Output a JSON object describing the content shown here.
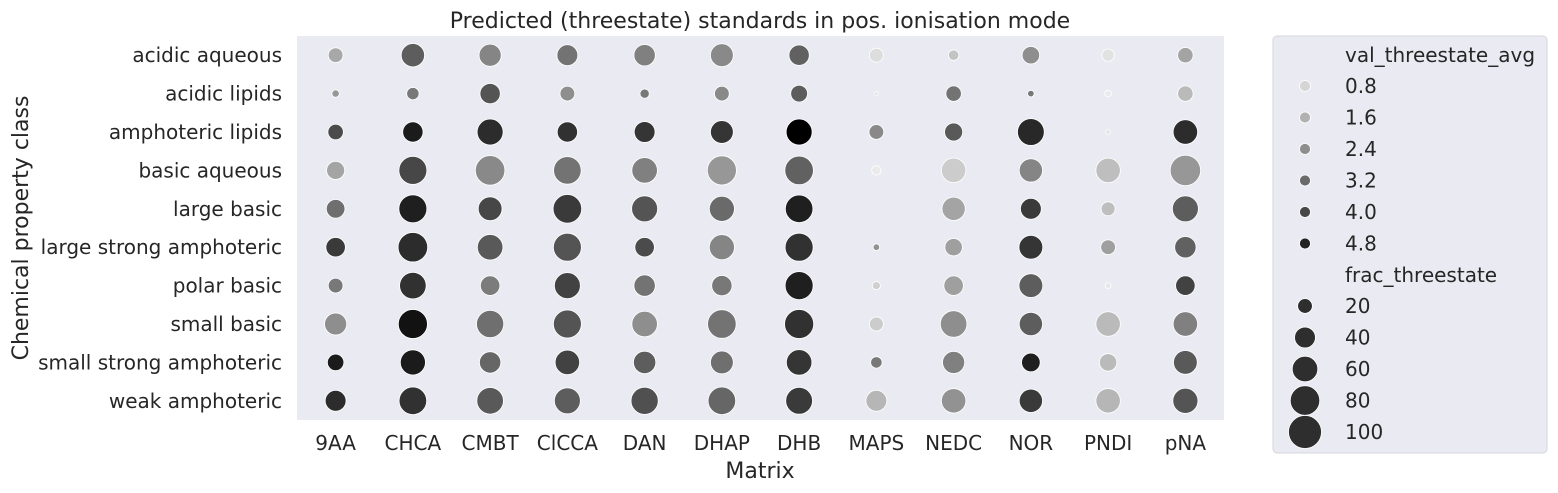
{
  "chart_data": {
    "type": "scatter",
    "title": "Predicted (threestate) standards in pos. ionisation mode",
    "xlabel": "Matrix",
    "ylabel": "Chemical property class",
    "x_categories": [
      "9AA",
      "CHCA",
      "CMBT",
      "ClCCA",
      "DAN",
      "DHAP",
      "DHB",
      "MAPS",
      "NEDC",
      "NOR",
      "PNDI",
      "pNA"
    ],
    "y_categories": [
      "acidic aqueous",
      "acidic lipids",
      "amphoteric lipids",
      "basic aqueous",
      "large basic",
      "large strong amphoteric",
      "polar basic",
      "small basic",
      "small strong amphoteric",
      "weak amphoteric"
    ],
    "color_variable": "val_threestate_avg",
    "size_variable": "frac_threestate",
    "legend": {
      "placement": "outside-right",
      "color_title": "val_threestate_avg",
      "color_entries": [
        0.8,
        1.6,
        2.4,
        3.2,
        4.0,
        4.8
      ],
      "color_labels": [
        "0.8",
        "1.6",
        "2.4",
        "3.2",
        "4.0",
        "4.8"
      ],
      "size_title": "frac_threestate",
      "size_entries": [
        20,
        40,
        60,
        80,
        100
      ],
      "size_labels": [
        "20",
        "40",
        "60",
        "80",
        "100"
      ]
    },
    "grid": false,
    "points": [
      {
        "x": "9AA",
        "y": "acidic aqueous",
        "val": 1.8,
        "frac": 20
      },
      {
        "x": "CHCA",
        "y": "acidic aqueous",
        "val": 3.5,
        "frac": 50
      },
      {
        "x": "CMBT",
        "y": "acidic aqueous",
        "val": 2.6,
        "frac": 45
      },
      {
        "x": "ClCCA",
        "y": "acidic aqueous",
        "val": 3.0,
        "frac": 40
      },
      {
        "x": "DAN",
        "y": "acidic aqueous",
        "val": 2.7,
        "frac": 42
      },
      {
        "x": "DHAP",
        "y": "acidic aqueous",
        "val": 2.5,
        "frac": 48
      },
      {
        "x": "DHB",
        "y": "acidic aqueous",
        "val": 3.4,
        "frac": 38
      },
      {
        "x": "MAPS",
        "y": "acidic aqueous",
        "val": 0.6,
        "frac": 18
      },
      {
        "x": "NEDC",
        "y": "acidic aqueous",
        "val": 1.2,
        "frac": 10
      },
      {
        "x": "NOR",
        "y": "acidic aqueous",
        "val": 2.4,
        "frac": 28
      },
      {
        "x": "PNDI",
        "y": "acidic aqueous",
        "val": 0.5,
        "frac": 14
      },
      {
        "x": "pNA",
        "y": "acidic aqueous",
        "val": 1.9,
        "frac": 22
      },
      {
        "x": "9AA",
        "y": "acidic lipids",
        "val": 2.2,
        "frac": 5
      },
      {
        "x": "CHCA",
        "y": "acidic lipids",
        "val": 2.9,
        "frac": 14
      },
      {
        "x": "CMBT",
        "y": "acidic lipids",
        "val": 3.7,
        "frac": 38
      },
      {
        "x": "ClCCA",
        "y": "acidic lipids",
        "val": 2.4,
        "frac": 20
      },
      {
        "x": "DAN",
        "y": "acidic lipids",
        "val": 2.9,
        "frac": 8
      },
      {
        "x": "DHAP",
        "y": "acidic lipids",
        "val": 2.5,
        "frac": 20
      },
      {
        "x": "DHB",
        "y": "acidic lipids",
        "val": 3.5,
        "frac": 26
      },
      {
        "x": "MAPS",
        "y": "acidic lipids",
        "val": 0.7,
        "frac": 1
      },
      {
        "x": "NEDC",
        "y": "acidic lipids",
        "val": 3.0,
        "frac": 22
      },
      {
        "x": "NOR",
        "y": "acidic lipids",
        "val": 2.9,
        "frac": 4
      },
      {
        "x": "PNDI",
        "y": "acidic lipids",
        "val": 0.3,
        "frac": 4
      },
      {
        "x": "pNA",
        "y": "acidic lipids",
        "val": 1.4,
        "frac": 22
      },
      {
        "x": "9AA",
        "y": "amphoteric lipids",
        "val": 3.9,
        "frac": 22
      },
      {
        "x": "CHCA",
        "y": "amphoteric lipids",
        "val": 5.0,
        "frac": 38
      },
      {
        "x": "CMBT",
        "y": "amphoteric lipids",
        "val": 4.6,
        "frac": 62
      },
      {
        "x": "ClCCA",
        "y": "amphoteric lipids",
        "val": 4.5,
        "frac": 38
      },
      {
        "x": "DAN",
        "y": "amphoteric lipids",
        "val": 4.4,
        "frac": 40
      },
      {
        "x": "DHAP",
        "y": "amphoteric lipids",
        "val": 4.4,
        "frac": 48
      },
      {
        "x": "DHB",
        "y": "amphoteric lipids",
        "val": 5.7,
        "frac": 62
      },
      {
        "x": "MAPS",
        "y": "amphoteric lipids",
        "val": 2.5,
        "frac": 20
      },
      {
        "x": "NEDC",
        "y": "amphoteric lipids",
        "val": 3.6,
        "frac": 30
      },
      {
        "x": "NOR",
        "y": "amphoteric lipids",
        "val": 4.7,
        "frac": 66
      },
      {
        "x": "PNDI",
        "y": "amphoteric lipids",
        "val": 0.5,
        "frac": 2
      },
      {
        "x": "pNA",
        "y": "amphoteric lipids",
        "val": 4.6,
        "frac": 55
      },
      {
        "x": "9AA",
        "y": "basic aqueous",
        "val": 1.9,
        "frac": 30
      },
      {
        "x": "CHCA",
        "y": "basic aqueous",
        "val": 4.0,
        "frac": 72
      },
      {
        "x": "CMBT",
        "y": "basic aqueous",
        "val": 2.5,
        "frac": 80
      },
      {
        "x": "ClCCA",
        "y": "basic aqueous",
        "val": 3.0,
        "frac": 70
      },
      {
        "x": "DAN",
        "y": "basic aqueous",
        "val": 2.7,
        "frac": 60
      },
      {
        "x": "DHAP",
        "y": "basic aqueous",
        "val": 2.2,
        "frac": 78
      },
      {
        "x": "DHB",
        "y": "basic aqueous",
        "val": 3.4,
        "frac": 75
      },
      {
        "x": "MAPS",
        "y": "basic aqueous",
        "val": 0.3,
        "frac": 8
      },
      {
        "x": "NEDC",
        "y": "basic aqueous",
        "val": 1.0,
        "frac": 55
      },
      {
        "x": "NOR",
        "y": "basic aqueous",
        "val": 2.6,
        "frac": 50
      },
      {
        "x": "PNDI",
        "y": "basic aqueous",
        "val": 1.3,
        "frac": 55
      },
      {
        "x": "pNA",
        "y": "basic aqueous",
        "val": 2.2,
        "frac": 85
      },
      {
        "x": "9AA",
        "y": "large basic",
        "val": 3.1,
        "frac": 32
      },
      {
        "x": "CHCA",
        "y": "large basic",
        "val": 4.9,
        "frac": 72
      },
      {
        "x": "CMBT",
        "y": "large basic",
        "val": 4.0,
        "frac": 52
      },
      {
        "x": "ClCCA",
        "y": "large basic",
        "val": 4.3,
        "frac": 75
      },
      {
        "x": "DAN",
        "y": "large basic",
        "val": 3.7,
        "frac": 62
      },
      {
        "x": "DHAP",
        "y": "large basic",
        "val": 3.2,
        "frac": 58
      },
      {
        "x": "DHB",
        "y": "large basic",
        "val": 4.9,
        "frac": 70
      },
      {
        "x": "NEDC",
        "y": "large basic",
        "val": 1.9,
        "frac": 50
      },
      {
        "x": "NOR",
        "y": "large basic",
        "val": 4.3,
        "frac": 40
      },
      {
        "x": "PNDI",
        "y": "large basic",
        "val": 1.3,
        "frac": 18
      },
      {
        "x": "pNA",
        "y": "large basic",
        "val": 3.5,
        "frac": 62
      },
      {
        "x": "9AA",
        "y": "large strong amphoteric",
        "val": 4.3,
        "frac": 35
      },
      {
        "x": "CHCA",
        "y": "large strong amphoteric",
        "val": 4.6,
        "frac": 80
      },
      {
        "x": "CMBT",
        "y": "large strong amphoteric",
        "val": 3.6,
        "frac": 60
      },
      {
        "x": "ClCCA",
        "y": "large strong amphoteric",
        "val": 3.7,
        "frac": 72
      },
      {
        "x": "DAN",
        "y": "large strong amphoteric",
        "val": 3.9,
        "frac": 35
      },
      {
        "x": "DHAP",
        "y": "large strong amphoteric",
        "val": 2.6,
        "frac": 58
      },
      {
        "x": "DHB",
        "y": "large strong amphoteric",
        "val": 4.5,
        "frac": 72
      },
      {
        "x": "MAPS",
        "y": "large strong amphoteric",
        "val": 2.3,
        "frac": 4
      },
      {
        "x": "NEDC",
        "y": "large strong amphoteric",
        "val": 2.0,
        "frac": 28
      },
      {
        "x": "NOR",
        "y": "large strong amphoteric",
        "val": 4.4,
        "frac": 52
      },
      {
        "x": "PNDI",
        "y": "large strong amphoteric",
        "val": 2.0,
        "frac": 20
      },
      {
        "x": "pNA",
        "y": "large strong amphoteric",
        "val": 3.4,
        "frac": 42
      },
      {
        "x": "9AA",
        "y": "polar basic",
        "val": 2.9,
        "frac": 20
      },
      {
        "x": "CHCA",
        "y": "polar basic",
        "val": 4.5,
        "frac": 65
      },
      {
        "x": "CMBT",
        "y": "polar basic",
        "val": 2.8,
        "frac": 35
      },
      {
        "x": "ClCCA",
        "y": "polar basic",
        "val": 4.1,
        "frac": 62
      },
      {
        "x": "DAN",
        "y": "polar basic",
        "val": 3.0,
        "frac": 42
      },
      {
        "x": "DHAP",
        "y": "polar basic",
        "val": 2.9,
        "frac": 38
      },
      {
        "x": "DHB",
        "y": "polar basic",
        "val": 4.9,
        "frac": 72
      },
      {
        "x": "MAPS",
        "y": "polar basic",
        "val": 0.9,
        "frac": 6
      },
      {
        "x": "NEDC",
        "y": "polar basic",
        "val": 2.0,
        "frac": 35
      },
      {
        "x": "NOR",
        "y": "polar basic",
        "val": 3.5,
        "frac": 52
      },
      {
        "x": "PNDI",
        "y": "polar basic",
        "val": 0.4,
        "frac": 3
      },
      {
        "x": "pNA",
        "y": "polar basic",
        "val": 4.1,
        "frac": 35
      },
      {
        "x": "9AA",
        "y": "small basic",
        "val": 2.4,
        "frac": 45
      },
      {
        "x": "CHCA",
        "y": "small basic",
        "val": 5.2,
        "frac": 78
      },
      {
        "x": "CMBT",
        "y": "small basic",
        "val": 3.1,
        "frac": 68
      },
      {
        "x": "ClCCA",
        "y": "small basic",
        "val": 3.7,
        "frac": 72
      },
      {
        "x": "DAN",
        "y": "small basic",
        "val": 2.4,
        "frac": 60
      },
      {
        "x": "DHAP",
        "y": "small basic",
        "val": 3.0,
        "frac": 75
      },
      {
        "x": "DHB",
        "y": "small basic",
        "val": 4.5,
        "frac": 78
      },
      {
        "x": "MAPS",
        "y": "small basic",
        "val": 1.0,
        "frac": 18
      },
      {
        "x": "NEDC",
        "y": "small basic",
        "val": 2.4,
        "frac": 65
      },
      {
        "x": "NOR",
        "y": "small basic",
        "val": 3.5,
        "frac": 50
      },
      {
        "x": "PNDI",
        "y": "small basic",
        "val": 1.4,
        "frac": 55
      },
      {
        "x": "pNA",
        "y": "small basic",
        "val": 2.7,
        "frac": 55
      },
      {
        "x": "9AA",
        "y": "small strong amphoteric",
        "val": 5.0,
        "frac": 25
      },
      {
        "x": "CHCA",
        "y": "small strong amphoteric",
        "val": 5.0,
        "frac": 58
      },
      {
        "x": "CMBT",
        "y": "small strong amphoteric",
        "val": 3.3,
        "frac": 42
      },
      {
        "x": "ClCCA",
        "y": "small strong amphoteric",
        "val": 4.1,
        "frac": 55
      },
      {
        "x": "DAN",
        "y": "small strong amphoteric",
        "val": 3.5,
        "frac": 46
      },
      {
        "x": "DHAP",
        "y": "small strong amphoteric",
        "val": 3.1,
        "frac": 48
      },
      {
        "x": "DHB",
        "y": "small strong amphoteric",
        "val": 4.4,
        "frac": 60
      },
      {
        "x": "MAPS",
        "y": "small strong amphoteric",
        "val": 2.9,
        "frac": 12
      },
      {
        "x": "NEDC",
        "y": "small strong amphoteric",
        "val": 2.7,
        "frac": 45
      },
      {
        "x": "NOR",
        "y": "small strong amphoteric",
        "val": 4.9,
        "frac": 32
      },
      {
        "x": "PNDI",
        "y": "small strong amphoteric",
        "val": 1.4,
        "frac": 28
      },
      {
        "x": "pNA",
        "y": "small strong amphoteric",
        "val": 3.6,
        "frac": 52
      },
      {
        "x": "9AA",
        "y": "weak amphoteric",
        "val": 4.6,
        "frac": 40
      },
      {
        "x": "CHCA",
        "y": "weak amphoteric",
        "val": 4.5,
        "frac": 70
      },
      {
        "x": "CMBT",
        "y": "weak amphoteric",
        "val": 3.6,
        "frac": 65
      },
      {
        "x": "ClCCA",
        "y": "weak amphoteric",
        "val": 3.5,
        "frac": 62
      },
      {
        "x": "DAN",
        "y": "weak amphoteric",
        "val": 3.8,
        "frac": 68
      },
      {
        "x": "DHAP",
        "y": "weak amphoteric",
        "val": 3.3,
        "frac": 70
      },
      {
        "x": "DHB",
        "y": "weak amphoteric",
        "val": 4.3,
        "frac": 66
      },
      {
        "x": "MAPS",
        "y": "weak amphoteric",
        "val": 1.5,
        "frac": 40
      },
      {
        "x": "NEDC",
        "y": "weak amphoteric",
        "val": 2.3,
        "frac": 55
      },
      {
        "x": "NOR",
        "y": "weak amphoteric",
        "val": 4.3,
        "frac": 50
      },
      {
        "x": "PNDI",
        "y": "weak amphoteric",
        "val": 1.5,
        "frac": 55
      },
      {
        "x": "pNA",
        "y": "weak amphoteric",
        "val": 3.7,
        "frac": 58
      }
    ]
  }
}
